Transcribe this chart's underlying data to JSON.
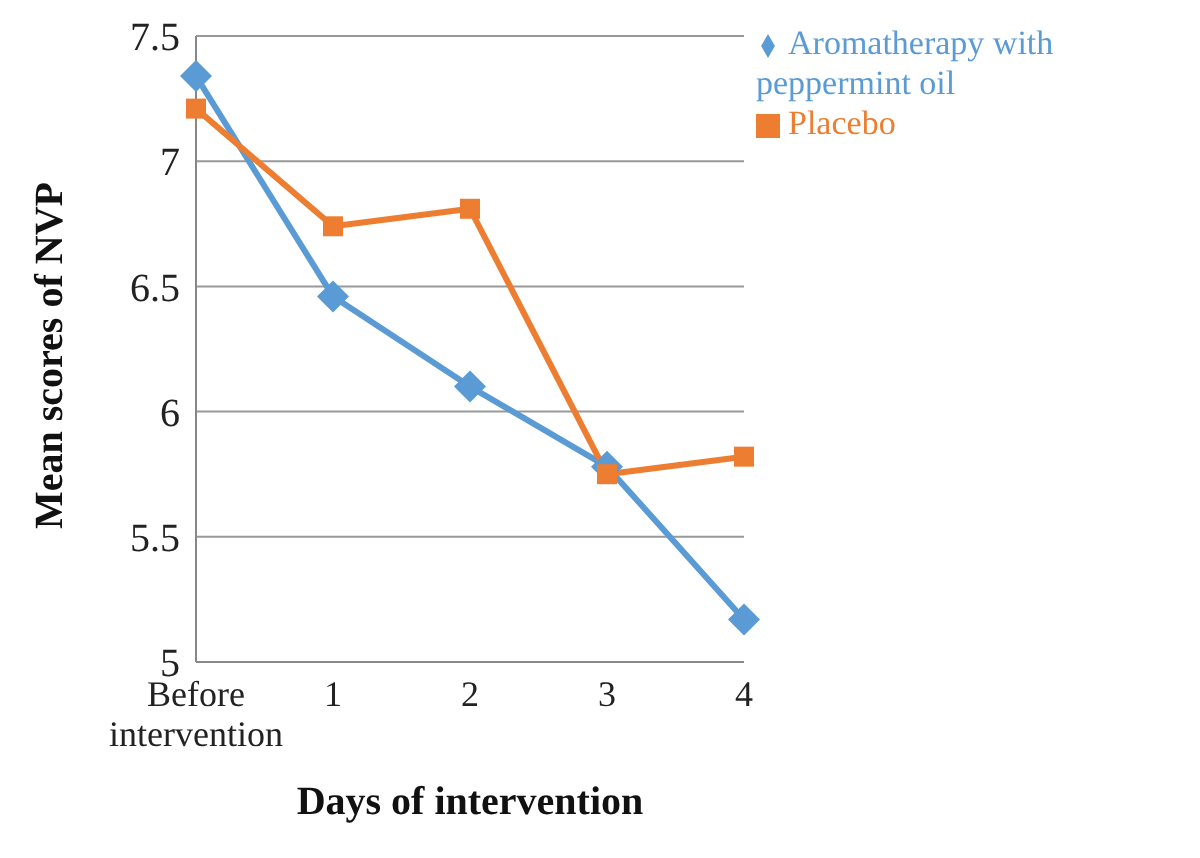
{
  "chart_data": {
    "type": "line",
    "xlabel": "Days of intervention",
    "ylabel": "Mean scores of NVP",
    "categories": [
      "Before intervention",
      "1",
      "2",
      "3",
      "4"
    ],
    "series": [
      {
        "name": "Aromatherapy with peppermint oil",
        "color": "#5b9bd5",
        "marker": "diamond",
        "values": [
          7.34,
          6.46,
          6.1,
          5.78,
          5.17
        ]
      },
      {
        "name": "Placebo",
        "color": "#ed7d31",
        "marker": "square",
        "values": [
          7.21,
          6.74,
          6.81,
          5.75,
          5.82
        ]
      }
    ],
    "ylim": [
      5,
      7.5
    ],
    "yticks": [
      5,
      5.5,
      6,
      6.5,
      7,
      7.5
    ],
    "grid": "y",
    "legend": "top right"
  }
}
